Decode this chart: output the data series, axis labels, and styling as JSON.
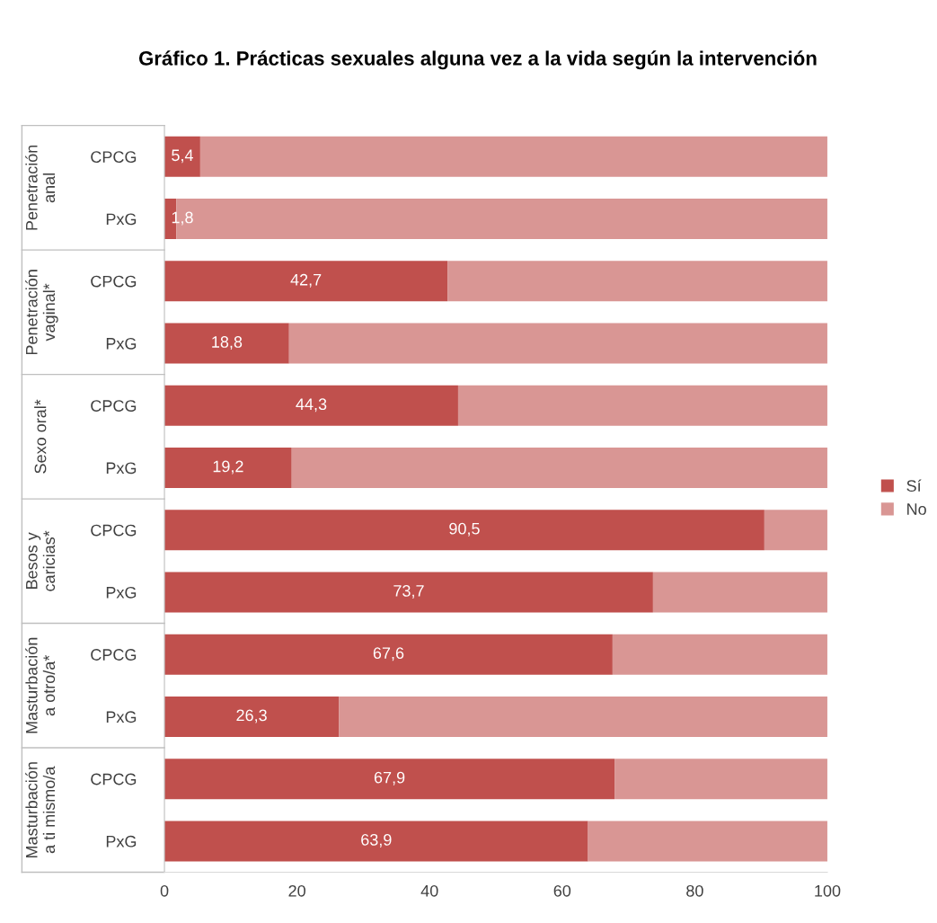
{
  "chart_data": {
    "type": "bar",
    "orientation": "horizontal",
    "stacked": true,
    "title": "Gráfico 1. Prácticas sexuales alguna vez a la vida según la intervención",
    "categories": [
      "CPCG",
      "PxG",
      "CPCG",
      "PxG",
      "CPCG",
      "PxG",
      "CPCG",
      "PxG",
      "CPCG",
      "PxG",
      "CPCG",
      "PxG"
    ],
    "series": [
      {
        "name": "Sí",
        "color": "#c0504d",
        "values": [
          5.4,
          1.8,
          42.7,
          18.8,
          44.3,
          19.2,
          90.5,
          73.7,
          67.6,
          26.3,
          67.9,
          63.9
        ],
        "value_labels": [
          "5,4",
          "1,8",
          "42,7",
          "18,8",
          "44,3",
          "19,2",
          "90,5",
          "73,7",
          "67,6",
          "26,3",
          "67,9",
          "63,9"
        ]
      },
      {
        "name": "No",
        "color": "#d99694",
        "values": [
          94.6,
          98.2,
          57.3,
          81.2,
          55.7,
          80.8,
          9.5,
          26.3,
          32.4,
          73.7,
          32.1,
          36.1
        ]
      }
    ],
    "annotations": [
      "Penetración\nanal",
      "Penetración\nvaginal*",
      "Sexo oral*",
      "Besos y\ncaricias*",
      "Masturbación\na otro/a*",
      "Masturbación\na ti mismo/a"
    ],
    "xlim": [
      0,
      100
    ],
    "xticks": [
      0,
      20,
      40,
      60,
      80,
      100
    ],
    "grid": false,
    "legend": "right"
  }
}
